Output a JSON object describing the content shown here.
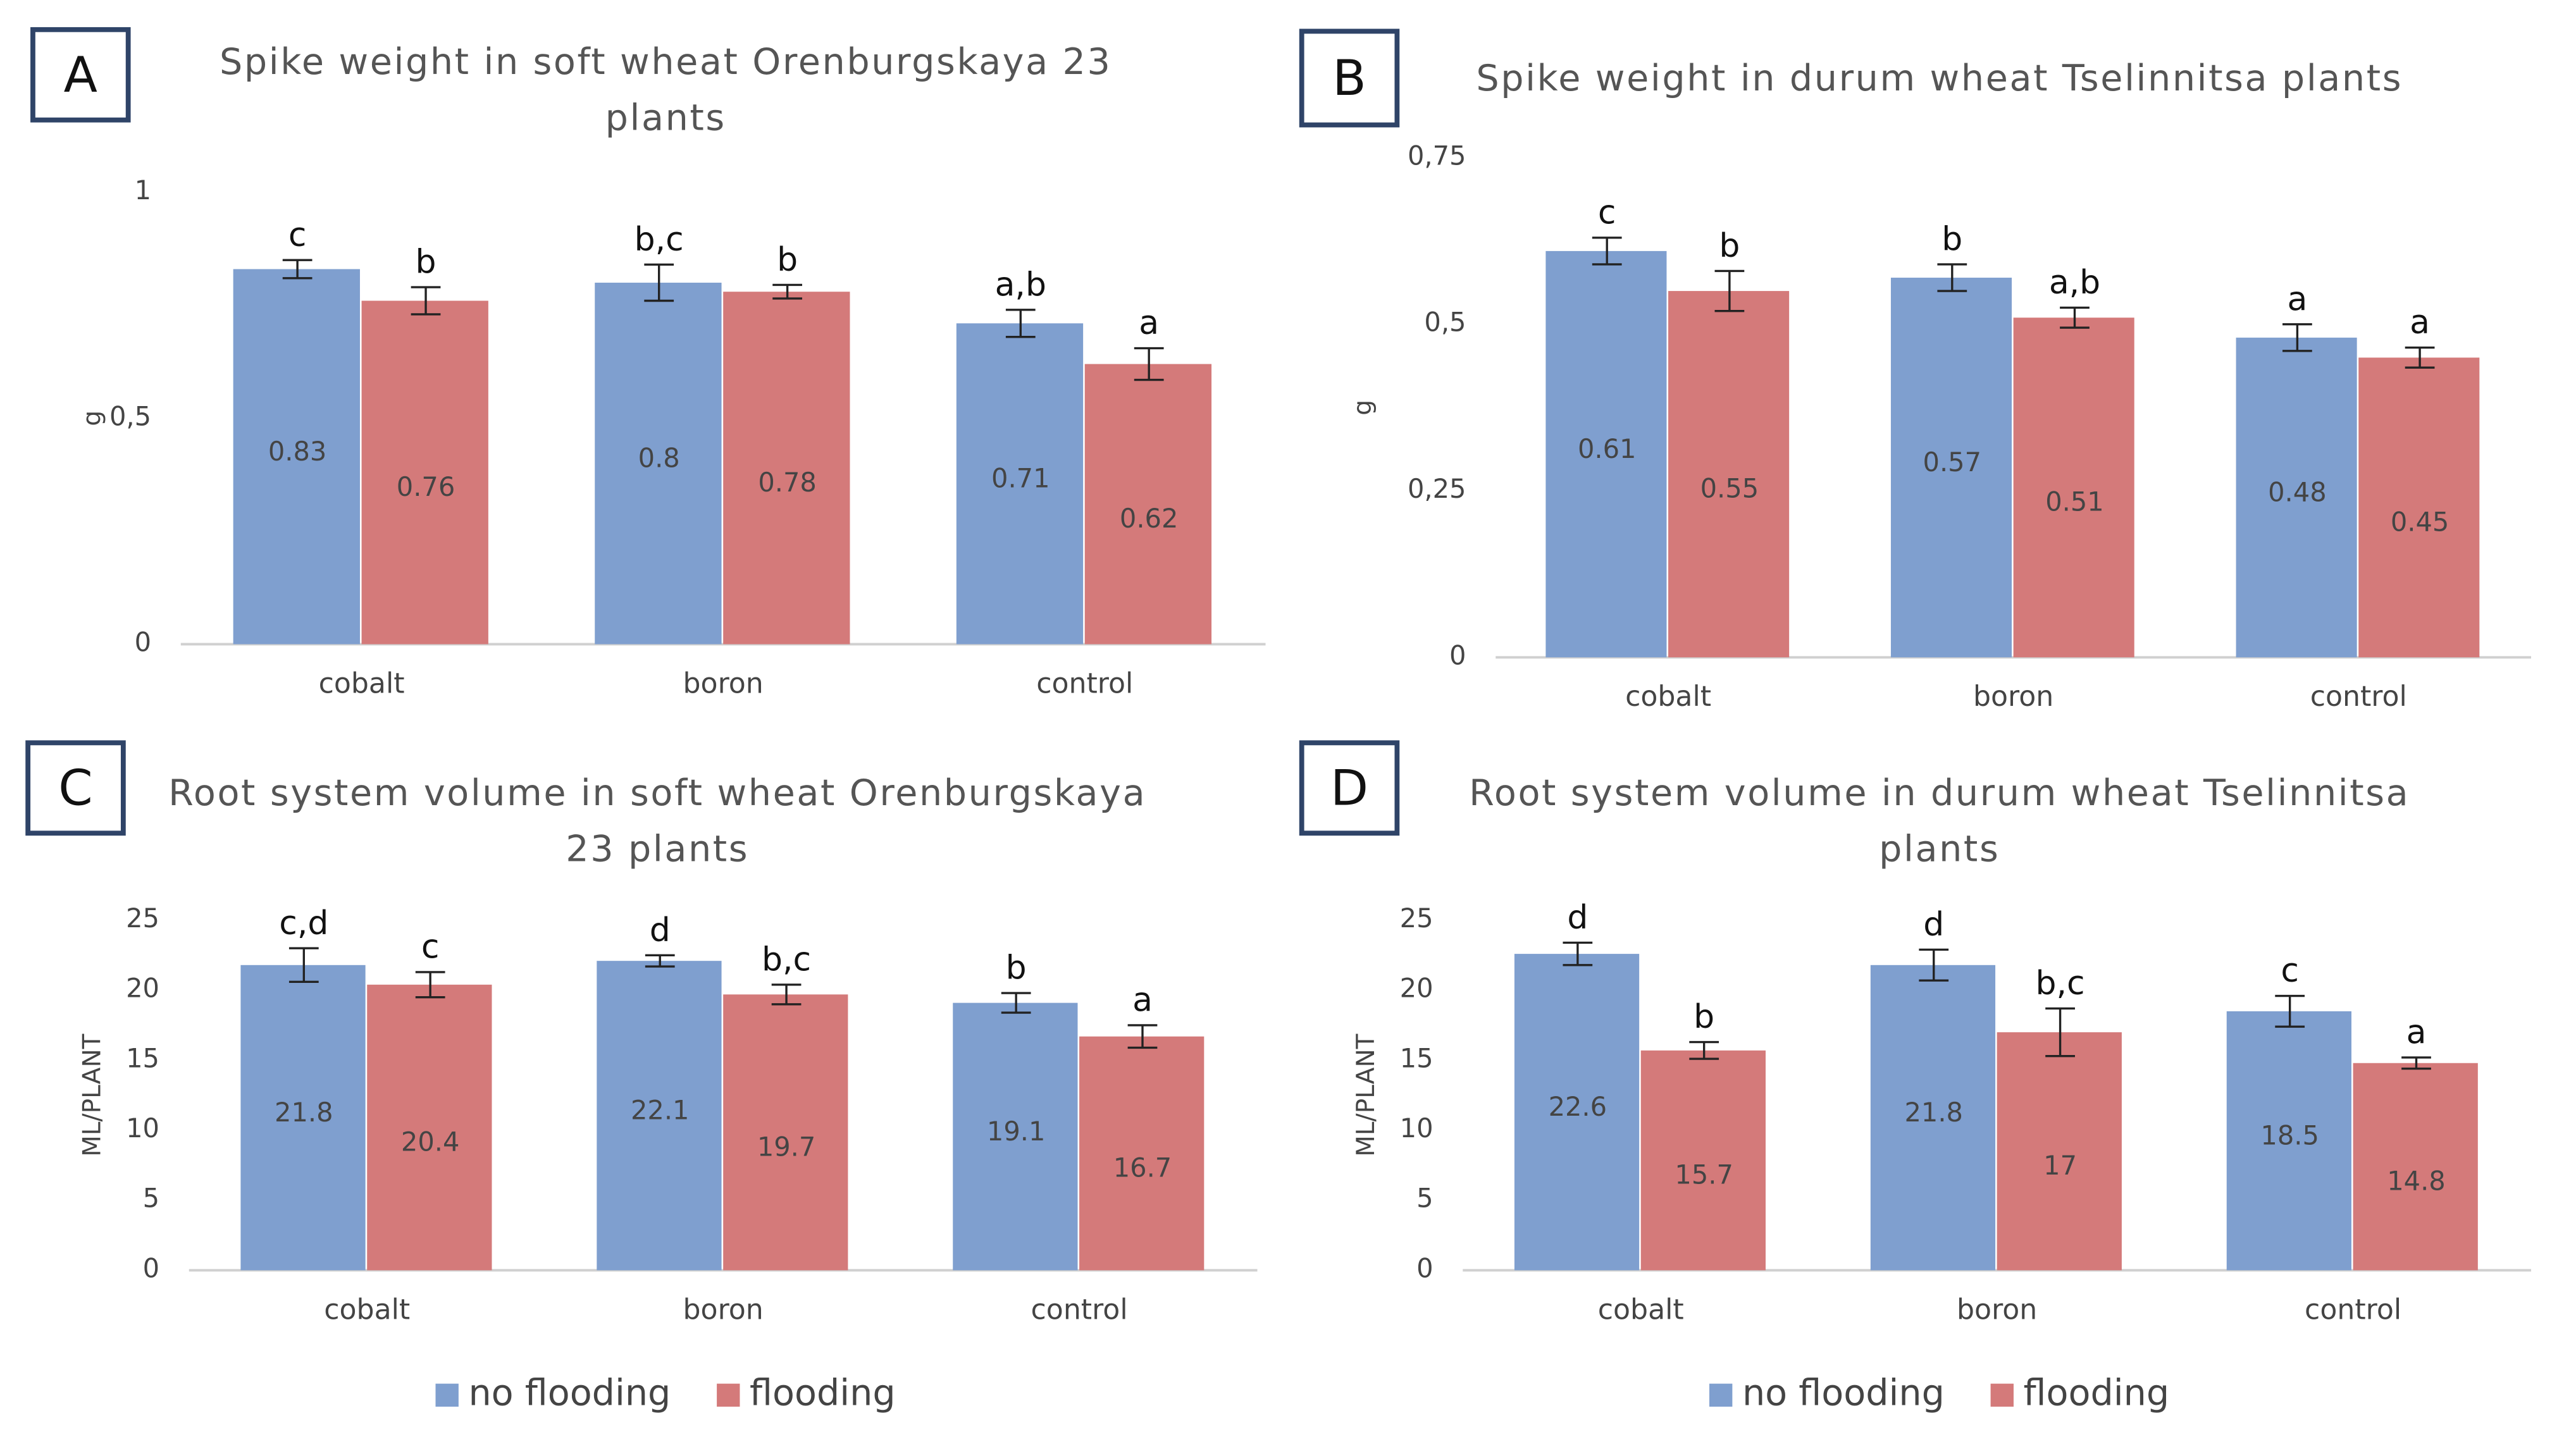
{
  "chart_data": [
    {
      "type": "bar",
      "panel": "A",
      "title": "Spike weight in soft wheat Orenburgskaya 23 plants",
      "ylabel": "g",
      "categories": [
        "cobalt",
        "boron",
        "control"
      ],
      "series": [
        {
          "name": "no flooding",
          "color": "#7f9fcf",
          "values": [
            0.83,
            0.8,
            0.71
          ],
          "errors": [
            0.02,
            0.04,
            0.03
          ],
          "annotations": [
            "c",
            "b,c",
            "a,b"
          ]
        },
        {
          "name": "flooding",
          "color": "#d47a7a",
          "values": [
            0.76,
            0.78,
            0.62
          ],
          "errors": [
            0.03,
            0.015,
            0.035
          ],
          "annotations": [
            "b",
            "b",
            "a"
          ]
        }
      ],
      "ylim": [
        0,
        1
      ],
      "yticks": [
        0,
        {
          "value": 0.5,
          "label": "0,5"
        },
        1
      ],
      "legend": null
    },
    {
      "type": "bar",
      "panel": "B",
      "title": "Spike weight in durum wheat Tselinnitsa plants",
      "ylabel": "g",
      "categories": [
        "cobalt",
        "boron",
        "control"
      ],
      "series": [
        {
          "name": "no flooding",
          "color": "#7f9fcf",
          "values": [
            0.61,
            0.57,
            0.48
          ],
          "errors": [
            0.02,
            0.02,
            0.02
          ],
          "annotations": [
            "c",
            "b",
            "a"
          ]
        },
        {
          "name": "flooding",
          "color": "#d47a7a",
          "values": [
            0.55,
            0.51,
            0.45
          ],
          "errors": [
            0.03,
            0.015,
            0.015
          ],
          "annotations": [
            "b",
            "a,b",
            "a"
          ]
        }
      ],
      "ylim": [
        0,
        0.75
      ],
      "yticks": [
        0,
        {
          "value": 0.25,
          "label": "0,25"
        },
        {
          "value": 0.5,
          "label": "0,5"
        },
        {
          "value": 0.75,
          "label": "0,75"
        }
      ],
      "legend": null
    },
    {
      "type": "bar",
      "panel": "C",
      "title": "Root system volume in soft wheat Orenburgskaya 23 plants",
      "ylabel": "ML/PLANT",
      "categories": [
        "cobalt",
        "boron",
        "control"
      ],
      "series": [
        {
          "name": "no flooding",
          "color": "#7f9fcf",
          "values": [
            21.8,
            22.1,
            19.1
          ],
          "errors": [
            1.2,
            0.4,
            0.7
          ],
          "annotations": [
            "c,d",
            "d",
            "b"
          ]
        },
        {
          "name": "flooding",
          "color": "#d47a7a",
          "values": [
            20.4,
            19.7,
            16.7
          ],
          "errors": [
            0.9,
            0.7,
            0.8
          ],
          "annotations": [
            "c",
            "b,c",
            "a"
          ]
        }
      ],
      "ylim": [
        0,
        25
      ],
      "yticks": [
        0,
        5,
        10,
        15,
        20,
        25
      ],
      "legend": "bottom"
    },
    {
      "type": "bar",
      "panel": "D",
      "title": "Root system volume in durum wheat Tselinnitsa plants",
      "ylabel": "ML/PLANT",
      "categories": [
        "cobalt",
        "boron",
        "control"
      ],
      "series": [
        {
          "name": "no flooding",
          "color": "#7f9fcf",
          "values": [
            22.6,
            21.8,
            18.5
          ],
          "errors": [
            0.8,
            1.1,
            1.1
          ],
          "annotations": [
            "d",
            "d",
            "c"
          ]
        },
        {
          "name": "flooding",
          "color": "#d47a7a",
          "values": [
            15.7,
            17,
            14.8
          ],
          "errors": [
            0.6,
            1.7,
            0.4
          ],
          "annotations": [
            "b",
            "b,c",
            "a"
          ]
        }
      ],
      "ylim": [
        0,
        25
      ],
      "yticks": [
        0,
        5,
        10,
        15,
        20,
        25
      ],
      "legend": "bottom"
    }
  ]
}
